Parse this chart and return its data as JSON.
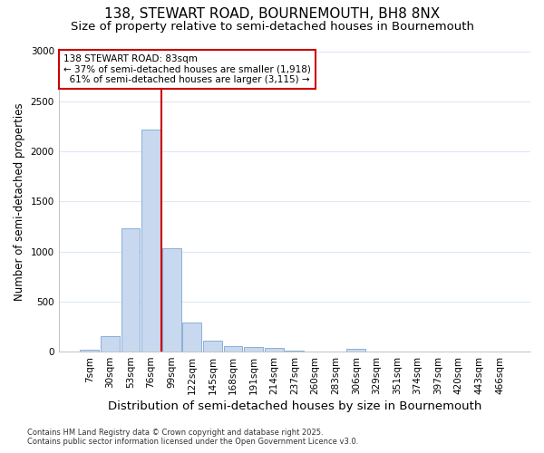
{
  "title": "138, STEWART ROAD, BOURNEMOUTH, BH8 8NX",
  "subtitle": "Size of property relative to semi-detached houses in Bournemouth",
  "xlabel": "Distribution of semi-detached houses by size in Bournemouth",
  "ylabel": "Number of semi-detached properties",
  "footnote": "Contains HM Land Registry data © Crown copyright and database right 2025.\nContains public sector information licensed under the Open Government Licence v3.0.",
  "bin_labels": [
    "7sqm",
    "30sqm",
    "53sqm",
    "76sqm",
    "99sqm",
    "122sqm",
    "145sqm",
    "168sqm",
    "191sqm",
    "214sqm",
    "237sqm",
    "260sqm",
    "283sqm",
    "306sqm",
    "329sqm",
    "351sqm",
    "374sqm",
    "397sqm",
    "420sqm",
    "443sqm",
    "466sqm"
  ],
  "bar_values": [
    20,
    150,
    1230,
    2220,
    1030,
    290,
    110,
    55,
    50,
    40,
    10,
    0,
    0,
    30,
    0,
    0,
    0,
    0,
    0,
    0,
    0
  ],
  "bar_color": "#c8d8ee",
  "bar_edge_color": "#8ab0d8",
  "vline_color": "#cc0000",
  "vline_x_index": 3.5,
  "property_label": "138 STEWART ROAD: 83sqm",
  "pct_smaller": "37%",
  "count_smaller": "1,918",
  "pct_larger": "61%",
  "count_larger": "3,115",
  "annotation_box_color": "#cc0000",
  "ylim": [
    0,
    3000
  ],
  "yticks": [
    0,
    500,
    1000,
    1500,
    2000,
    2500,
    3000
  ],
  "background_color": "#ffffff",
  "grid_color": "#dde8f5",
  "title_fontsize": 11,
  "subtitle_fontsize": 9.5,
  "xlabel_fontsize": 9.5,
  "ylabel_fontsize": 8.5,
  "tick_fontsize": 7.5,
  "annot_fontsize": 7.5,
  "footnote_fontsize": 6
}
